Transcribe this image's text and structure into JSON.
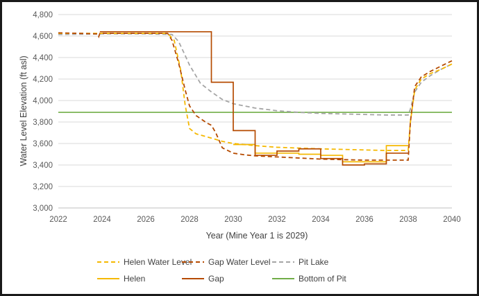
{
  "chart_data": {
    "type": "line",
    "title": "",
    "xlabel": "Year (Mine Year 1 is 2029)",
    "ylabel": "Water Level Elevation (ft asl)",
    "xlim": [
      2022,
      2040
    ],
    "ylim": [
      3000,
      4800
    ],
    "x_ticks": [
      "2022",
      "2024",
      "2026",
      "2028",
      "2030",
      "2032",
      "2034",
      "2036",
      "2038",
      "2040"
    ],
    "y_ticks": [
      "3,000",
      "3,200",
      "3,400",
      "3,600",
      "3,800",
      "4,000",
      "4,200",
      "4,400",
      "4,600",
      "4,800"
    ],
    "grid": "horizontal",
    "legend_position": "bottom",
    "series": [
      {
        "name": "Helen Water Level",
        "style": "dashed",
        "color": "#F5B800",
        "points": [
          [
            2022,
            4625
          ],
          [
            2024,
            4625
          ],
          [
            2026,
            4625
          ],
          [
            2027,
            4625
          ],
          [
            2027.3,
            4560
          ],
          [
            2027.6,
            4280
          ],
          [
            2027.8,
            3960
          ],
          [
            2028,
            3740
          ],
          [
            2028.3,
            3690
          ],
          [
            2029,
            3650
          ],
          [
            2029.5,
            3620
          ],
          [
            2030,
            3600
          ],
          [
            2031,
            3580
          ],
          [
            2032,
            3565
          ],
          [
            2034,
            3550
          ],
          [
            2036,
            3540
          ],
          [
            2037,
            3535
          ],
          [
            2038,
            3535
          ],
          [
            2038.1,
            3800
          ],
          [
            2038.3,
            4100
          ],
          [
            2038.6,
            4200
          ],
          [
            2039,
            4250
          ],
          [
            2039.5,
            4290
          ],
          [
            2040,
            4340
          ]
        ]
      },
      {
        "name": "Gap Water Level",
        "style": "dashed",
        "color": "#B54A00",
        "points": [
          [
            2022,
            4630
          ],
          [
            2023.8,
            4620
          ],
          [
            2023.85,
            4595
          ],
          [
            2023.9,
            4625
          ],
          [
            2026,
            4625
          ],
          [
            2027,
            4625
          ],
          [
            2027.2,
            4560
          ],
          [
            2027.5,
            4350
          ],
          [
            2027.8,
            4100
          ],
          [
            2028,
            3950
          ],
          [
            2028.3,
            3860
          ],
          [
            2028.8,
            3790
          ],
          [
            2029,
            3770
          ],
          [
            2029.2,
            3700
          ],
          [
            2029.5,
            3560
          ],
          [
            2030,
            3510
          ],
          [
            2030.5,
            3495
          ],
          [
            2031,
            3485
          ],
          [
            2032,
            3475
          ],
          [
            2033,
            3465
          ],
          [
            2034,
            3455
          ],
          [
            2035,
            3450
          ],
          [
            2036,
            3445
          ],
          [
            2038,
            3445
          ],
          [
            2038.1,
            3800
          ],
          [
            2038.3,
            4130
          ],
          [
            2038.6,
            4220
          ],
          [
            2039,
            4270
          ],
          [
            2039.5,
            4320
          ],
          [
            2040,
            4370
          ]
        ]
      },
      {
        "name": "Pit Lake",
        "style": "dashed",
        "color": "#A5A5A5",
        "points": [
          [
            2022,
            4615
          ],
          [
            2024,
            4620
          ],
          [
            2026,
            4620
          ],
          [
            2027.2,
            4615
          ],
          [
            2027.5,
            4550
          ],
          [
            2027.8,
            4420
          ],
          [
            2028,
            4330
          ],
          [
            2028.5,
            4160
          ],
          [
            2029,
            4080
          ],
          [
            2029.5,
            4010
          ],
          [
            2030,
            3970
          ],
          [
            2031,
            3930
          ],
          [
            2032,
            3905
          ],
          [
            2033,
            3890
          ],
          [
            2034,
            3880
          ],
          [
            2035,
            3875
          ],
          [
            2036,
            3870
          ],
          [
            2037,
            3865
          ],
          [
            2038,
            3865
          ],
          [
            2038.1,
            3920
          ],
          [
            2038.3,
            4080
          ],
          [
            2038.6,
            4170
          ],
          [
            2039,
            4230
          ],
          [
            2039.5,
            4290
          ],
          [
            2040,
            4340
          ]
        ]
      },
      {
        "name": "Helen",
        "style": "solid",
        "color": "#F5B800",
        "points": [
          [
            2030,
            3590
          ],
          [
            2031,
            3590
          ],
          [
            2031,
            3510
          ],
          [
            2033,
            3510
          ],
          [
            2033,
            3500
          ],
          [
            2034,
            3500
          ],
          [
            2034,
            3490
          ],
          [
            2035,
            3490
          ],
          [
            2035,
            3430
          ],
          [
            2037,
            3430
          ],
          [
            2037,
            3580
          ],
          [
            2038,
            3580
          ]
        ]
      },
      {
        "name": "Gap",
        "style": "solid",
        "color": "#B54A00",
        "points": [
          [
            2023.9,
            4640
          ],
          [
            2029,
            4640
          ],
          [
            2029,
            4170
          ],
          [
            2030,
            4170
          ],
          [
            2030,
            3720
          ],
          [
            2031,
            3720
          ],
          [
            2031,
            3490
          ],
          [
            2032,
            3490
          ],
          [
            2032,
            3530
          ],
          [
            2033,
            3530
          ],
          [
            2033,
            3550
          ],
          [
            2034,
            3550
          ],
          [
            2034,
            3460
          ],
          [
            2035,
            3460
          ],
          [
            2035,
            3400
          ],
          [
            2036,
            3400
          ],
          [
            2036,
            3410
          ],
          [
            2037,
            3410
          ],
          [
            2037,
            3510
          ],
          [
            2038,
            3510
          ]
        ]
      },
      {
        "name": "Bottom of Pit",
        "style": "solid",
        "color": "#70AD47",
        "points": [
          [
            2022,
            3890
          ],
          [
            2040,
            3890
          ]
        ]
      }
    ]
  }
}
